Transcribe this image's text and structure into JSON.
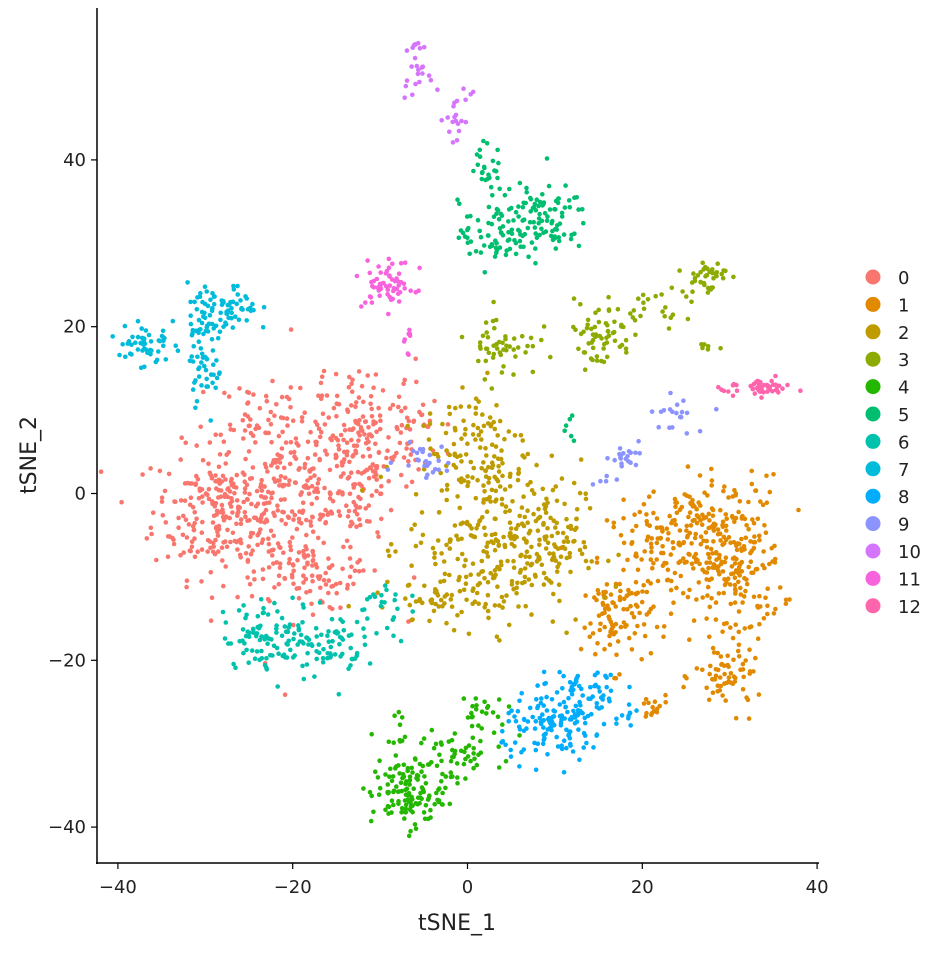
{
  "chart_data": {
    "type": "scatter",
    "title": "",
    "xlabel": "tSNE_1",
    "ylabel": "tSNE_2",
    "xlim": [
      -42,
      40
    ],
    "ylim": [
      -44,
      58
    ],
    "xticks": [
      -40,
      -20,
      0,
      20,
      40
    ],
    "yticks": [
      -40,
      -20,
      0,
      20,
      40
    ],
    "grid": false,
    "legend_position": "right",
    "note": "Points are approximated as Gaussian blobs per cluster: [center_x, center_y, sd_x, sd_y, count] in data units",
    "series": [
      {
        "name": "0",
        "color": "#F8766D",
        "blobs": [
          [
            -28,
            -2,
            4,
            4,
            250
          ],
          [
            -18,
            0,
            5,
            6,
            300
          ],
          [
            -12,
            6,
            3,
            5,
            120
          ],
          [
            -7,
            8,
            2,
            3,
            40
          ],
          [
            -25,
            10,
            2,
            2,
            30
          ],
          [
            -19,
            -10,
            3,
            2,
            60
          ]
        ]
      },
      {
        "name": "1",
        "color": "#E18A00",
        "blobs": [
          [
            30,
            -8,
            3,
            5,
            250
          ],
          [
            22,
            -7,
            3,
            3,
            100
          ],
          [
            17,
            -15,
            2,
            3,
            90
          ],
          [
            30,
            -22,
            2,
            2,
            60
          ],
          [
            21,
            -26,
            1,
            1,
            15
          ],
          [
            26,
            -3,
            2,
            2,
            40
          ]
        ]
      },
      {
        "name": "2",
        "color": "#BE9C00",
        "blobs": [
          [
            3,
            -6,
            5,
            5,
            300
          ],
          [
            1,
            6,
            3,
            4,
            100
          ],
          [
            -3,
            -13,
            2,
            1,
            30
          ],
          [
            10,
            -6,
            2,
            3,
            50
          ]
        ]
      },
      {
        "name": "3",
        "color": "#8CAB00",
        "blobs": [
          [
            4,
            18,
            2,
            2,
            50
          ],
          [
            15,
            19,
            2,
            2,
            60
          ],
          [
            27,
            26,
            1.3,
            1,
            40
          ],
          [
            21,
            22,
            2,
            1,
            20
          ],
          [
            28,
            17.5,
            0.7,
            0.3,
            6
          ]
        ]
      },
      {
        "name": "4",
        "color": "#24B700",
        "blobs": [
          [
            -7,
            -36,
            2,
            2,
            120
          ],
          [
            -2,
            -32,
            2,
            2,
            50
          ],
          [
            1,
            -27,
            1.5,
            2,
            30
          ],
          [
            -8,
            -28,
            0.5,
            2,
            10
          ]
        ]
      },
      {
        "name": "5",
        "color": "#00BE70",
        "blobs": [
          [
            8,
            33,
            3,
            2,
            100
          ],
          [
            3,
            31,
            2,
            2,
            60
          ],
          [
            2,
            39,
            1,
            1.5,
            25
          ],
          [
            12,
            8,
            0.4,
            1,
            6
          ]
        ]
      },
      {
        "name": "6",
        "color": "#00C1AB",
        "blobs": [
          [
            -22,
            -17,
            3,
            2,
            100
          ],
          [
            -16,
            -18,
            2,
            2,
            60
          ],
          [
            -10,
            -14,
            1.5,
            2,
            25
          ]
        ]
      },
      {
        "name": "7",
        "color": "#00BBDA",
        "blobs": [
          [
            -37,
            18,
            1.5,
            1.5,
            50
          ],
          [
            -30,
            15,
            1,
            2,
            40
          ],
          [
            -28,
            22,
            2,
            1.5,
            70
          ],
          [
            -30,
            20,
            1,
            1,
            20
          ]
        ]
      },
      {
        "name": "8",
        "color": "#00ACFC",
        "blobs": [
          [
            10,
            -28,
            3,
            2,
            130
          ],
          [
            14,
            -24,
            2,
            2,
            50
          ],
          [
            18,
            -27,
            1,
            0.5,
            8
          ]
        ]
      },
      {
        "name": "9",
        "color": "#8B93FF",
        "blobs": [
          [
            -5,
            4,
            1.5,
            1,
            25
          ],
          [
            18,
            5,
            1.5,
            1,
            20
          ],
          [
            24,
            9.5,
            1.5,
            1,
            20
          ],
          [
            15,
            2,
            0.8,
            0.8,
            5
          ]
        ]
      },
      {
        "name": "10",
        "color": "#D575FE",
        "blobs": [
          [
            -6,
            51,
            0.8,
            1.5,
            25
          ],
          [
            -1,
            45,
            0.7,
            1.5,
            20
          ]
        ]
      },
      {
        "name": "11",
        "color": "#F962DD",
        "blobs": [
          [
            -9,
            25,
            1.5,
            1.5,
            60
          ],
          [
            -7,
            19,
            0.5,
            1,
            8
          ]
        ]
      },
      {
        "name": "12",
        "color": "#FF65AC",
        "blobs": [
          [
            34,
            12.7,
            1.5,
            0.5,
            40
          ],
          [
            30,
            12.5,
            1,
            0.4,
            8
          ]
        ]
      }
    ]
  }
}
